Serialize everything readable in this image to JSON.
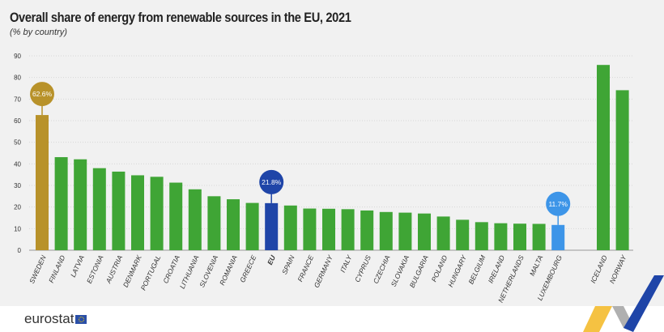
{
  "chart_data": {
    "type": "bar",
    "title": "Overall share of energy from renewable sources in the EU, 2021",
    "subtitle": "(% by country)",
    "ylim": [
      0,
      90
    ],
    "yticks": [
      0,
      10,
      20,
      30,
      40,
      50,
      60,
      70,
      80,
      90
    ],
    "grid": true,
    "categories": [
      "SWEDEN",
      "FINLAND",
      "LATVIA",
      "ESTONIA",
      "AUSTRIA",
      "DENMARK",
      "PORTUGAL",
      "CROATIA",
      "LITHUANIA",
      "SLOVENIA",
      "ROMANIA",
      "GREECE",
      "EU",
      "SPAIN",
      "FRANCE",
      "GERMANY",
      "ITALY",
      "CYPRUS",
      "CZECHIA",
      "SLOVAKIA",
      "BULGARIA",
      "POLAND",
      "HUNGARY",
      "BELGIUM",
      "IRELAND",
      "NETHERLANDS",
      "MALTA",
      "LUXEMBOURG",
      "ICELAND",
      "NORWAY"
    ],
    "values": [
      62.6,
      43.1,
      42.1,
      38.0,
      36.4,
      34.7,
      34.0,
      31.3,
      28.2,
      25.0,
      23.6,
      21.9,
      21.8,
      20.7,
      19.3,
      19.2,
      19.0,
      18.4,
      17.7,
      17.4,
      17.0,
      15.6,
      14.1,
      13.0,
      12.5,
      12.3,
      12.2,
      11.7,
      85.8,
      74.1
    ],
    "highlights": [
      {
        "category": "SWEDEN",
        "label": "62.6%",
        "color": "#b8922a"
      },
      {
        "category": "EU",
        "label": "21.8%",
        "color": "#1f45a8"
      },
      {
        "category": "LUXEMBOURG",
        "label": "11.7%",
        "color": "#3d95e8"
      }
    ],
    "default_color": "#3fa535"
  },
  "footer": {
    "logo": "eurostat"
  }
}
